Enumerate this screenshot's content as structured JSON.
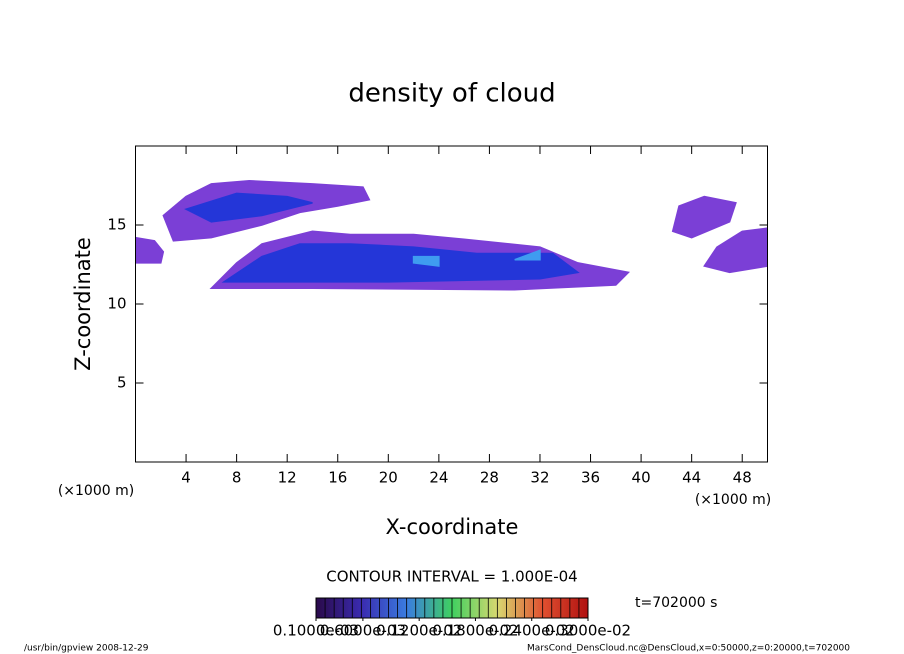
{
  "chart_data": {
    "type": "contour",
    "title": "density of cloud",
    "xlabel": "X-coordinate",
    "ylabel": "Z-coordinate",
    "xunit": "(×1000 m)",
    "yunit": "(×1000 m)",
    "xlim": [
      0,
      50
    ],
    "ylim": [
      0,
      20
    ],
    "xticks": [
      4,
      8,
      12,
      16,
      20,
      24,
      28,
      32,
      36,
      40,
      44,
      48
    ],
    "yticks": [
      5,
      10,
      15
    ],
    "series": [
      {
        "color": "#7b3fd6",
        "x": [
          6,
          14,
          30,
          38,
          39,
          35,
          32,
          26,
          22,
          17,
          14,
          10,
          8
        ],
        "values": [
          11.0,
          11.0,
          10.9,
          11.2,
          12.0,
          12.6,
          13.6,
          14.1,
          14.4,
          14.4,
          14.6,
          13.8,
          12.6
        ]
      },
      {
        "color": "#7b3fd6",
        "x": [
          2.2,
          4,
          6,
          9,
          14,
          18,
          18.5,
          16,
          13,
          10,
          6,
          3
        ],
        "values": [
          15.6,
          16.8,
          17.6,
          17.8,
          17.6,
          17.4,
          16.6,
          16.2,
          15.8,
          15.0,
          14.2,
          14.0
        ]
      },
      {
        "color": "#7b3fd6",
        "x": [
          0,
          2,
          2.2,
          1.5,
          0
        ],
        "values": [
          12.6,
          12.6,
          13.3,
          14.0,
          14.2
        ]
      },
      {
        "color": "#7b3fd6",
        "x": [
          43,
          45,
          47.5,
          47,
          44,
          42.5
        ],
        "values": [
          16.2,
          16.8,
          16.4,
          15.2,
          14.2,
          14.6
        ]
      },
      {
        "color": "#7b3fd6",
        "x": [
          45,
          47,
          50,
          50,
          48,
          46
        ],
        "values": [
          12.4,
          12.0,
          12.4,
          14.8,
          14.6,
          13.6
        ]
      },
      {
        "color": "#2436d8",
        "x": [
          7,
          20,
          32,
          35,
          33,
          27,
          22,
          17,
          13,
          10
        ],
        "values": [
          11.4,
          11.4,
          11.6,
          12.0,
          13.2,
          13.2,
          13.6,
          13.8,
          13.8,
          13.0
        ]
      },
      {
        "color": "#2436d8",
        "x": [
          4,
          8,
          12,
          14,
          10,
          6
        ],
        "values": [
          16.0,
          17.0,
          16.8,
          16.4,
          15.6,
          15.2
        ]
      },
      {
        "color": "#3f9cf0",
        "x": [
          22,
          24,
          24,
          22
        ],
        "values": [
          12.6,
          12.4,
          13.0,
          13.0
        ]
      },
      {
        "color": "#3f9cf0",
        "x": [
          30,
          32,
          32
        ],
        "values": [
          12.8,
          12.8,
          13.4
        ]
      }
    ],
    "contour_interval": "CONTOUR INTERVAL = 1.000E-04",
    "colorbar": {
      "lim": [
        0.0001,
        0.003
      ],
      "colors": [
        "#2a0a4a",
        "#3a2bb0",
        "#3a7ce0",
        "#3fd060",
        "#d8d870",
        "#e05030",
        "#b01010"
      ],
      "ticks": [
        {
          "value": 0.0001,
          "label": "0.1000e-03"
        },
        {
          "value": 0.0006,
          "label": "0.6000e-03"
        },
        {
          "value": 0.0012,
          "label": "0.1200e-02"
        },
        {
          "value": 0.0018,
          "label": "0.1800e-02"
        },
        {
          "value": 0.0024,
          "label": "0.2400e-02"
        },
        {
          "value": 0.003,
          "label": "0.3000e-02"
        }
      ]
    },
    "time_label": "t=702000 s",
    "footer_left": "/usr/bin/gpview   2008-12-29",
    "footer_right": "MarsCond_DensCloud.nc@DensCloud,x=0:50000,z=0:20000,t=702000"
  }
}
